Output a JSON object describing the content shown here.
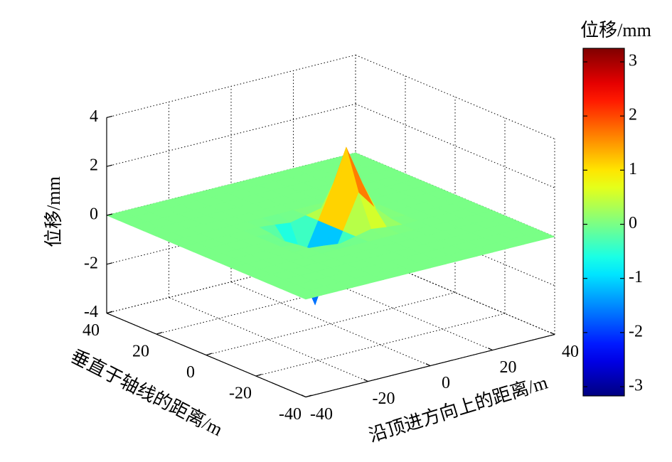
{
  "chart_data": {
    "type": "surface",
    "xlabel": "沿顶进方向上的距离/m",
    "ylabel": "垂直于轴线的距离/m",
    "zlabel": "位移/mm",
    "colorbar_label": "位移/mm",
    "colormap": "jet",
    "grid": true,
    "x": [
      -40,
      -35,
      -30,
      -25,
      -20,
      -15,
      -10,
      -5,
      0,
      5,
      10,
      15,
      20,
      25,
      30,
      35,
      40
    ],
    "y": [
      -40,
      -35,
      -30,
      -25,
      -20,
      -15,
      -10,
      -5,
      0,
      5,
      10,
      15,
      20,
      25,
      30,
      35,
      40
    ],
    "z": [
      [
        0,
        0,
        0,
        0,
        0,
        0,
        0,
        0,
        0,
        0,
        0,
        0,
        0,
        0,
        0,
        0,
        0
      ],
      [
        0,
        0,
        0,
        0,
        0,
        0,
        0,
        0,
        0,
        0,
        0,
        0,
        0,
        0,
        0,
        0,
        0
      ],
      [
        0,
        0,
        0,
        0,
        0,
        0,
        0,
        0,
        0,
        0,
        0,
        0,
        0,
        0,
        0,
        0,
        0
      ],
      [
        0,
        0,
        0,
        0,
        0,
        0,
        0,
        0,
        0,
        0,
        0,
        0,
        0,
        0,
        0,
        0,
        0
      ],
      [
        0,
        0,
        0,
        0,
        0,
        0,
        0,
        0,
        0,
        0,
        0,
        0,
        0,
        0,
        0,
        0,
        0
      ],
      [
        0,
        0,
        0,
        0,
        0,
        0,
        0,
        0,
        0,
        0,
        0,
        0,
        0,
        0,
        0,
        0,
        0
      ],
      [
        0,
        0,
        0,
        0,
        0,
        0,
        -0.06,
        -0.14,
        0,
        0.14,
        0.06,
        0,
        0,
        0,
        0,
        0,
        0
      ],
      [
        0,
        0,
        0,
        0,
        0,
        -0.06,
        -0.67,
        -1.41,
        0,
        1.41,
        0.67,
        0.06,
        0,
        0,
        0,
        0,
        0
      ],
      [
        0,
        0,
        0,
        0,
        0,
        -0.14,
        -1.47,
        -3.06,
        0,
        3.06,
        1.47,
        0.14,
        0,
        0,
        0,
        0,
        0
      ],
      [
        0,
        0,
        0,
        0,
        0,
        -0.06,
        -0.67,
        -1.41,
        0,
        1.41,
        0.67,
        0.06,
        0,
        0,
        0,
        0,
        0
      ],
      [
        0,
        0,
        0,
        0,
        0,
        0,
        -0.06,
        -0.14,
        0,
        0.14,
        0.06,
        0,
        0,
        0,
        0,
        0,
        0
      ],
      [
        0,
        0,
        0,
        0,
        0,
        0,
        0,
        0,
        0,
        0,
        0,
        0,
        0,
        0,
        0,
        0,
        0
      ],
      [
        0,
        0,
        0,
        0,
        0,
        0,
        0,
        0,
        0,
        0,
        0,
        0,
        0,
        0,
        0,
        0,
        0
      ],
      [
        0,
        0,
        0,
        0,
        0,
        0,
        0,
        0,
        0,
        0,
        0,
        0,
        0,
        0,
        0,
        0,
        0
      ],
      [
        0,
        0,
        0,
        0,
        0,
        0,
        0,
        0,
        0,
        0,
        0,
        0,
        0,
        0,
        0,
        0,
        0
      ],
      [
        0,
        0,
        0,
        0,
        0,
        0,
        0,
        0,
        0,
        0,
        0,
        0,
        0,
        0,
        0,
        0,
        0
      ],
      [
        0,
        0,
        0,
        0,
        0,
        0,
        0,
        0,
        0,
        0,
        0,
        0,
        0,
        0,
        0,
        0,
        0
      ]
    ],
    "xlim": [
      -40,
      40
    ],
    "ylim": [
      -40,
      40
    ],
    "zlim": [
      -4,
      4
    ],
    "xticks": [
      -40,
      -20,
      0,
      20,
      40
    ],
    "yticks": [
      -40,
      -20,
      0,
      20,
      40
    ],
    "zticks": [
      -4,
      -2,
      0,
      2,
      4
    ],
    "clim": [
      -3.17,
      3.25
    ],
    "cticks": [
      -3,
      -2,
      -1,
      0,
      1,
      2,
      3
    ]
  }
}
